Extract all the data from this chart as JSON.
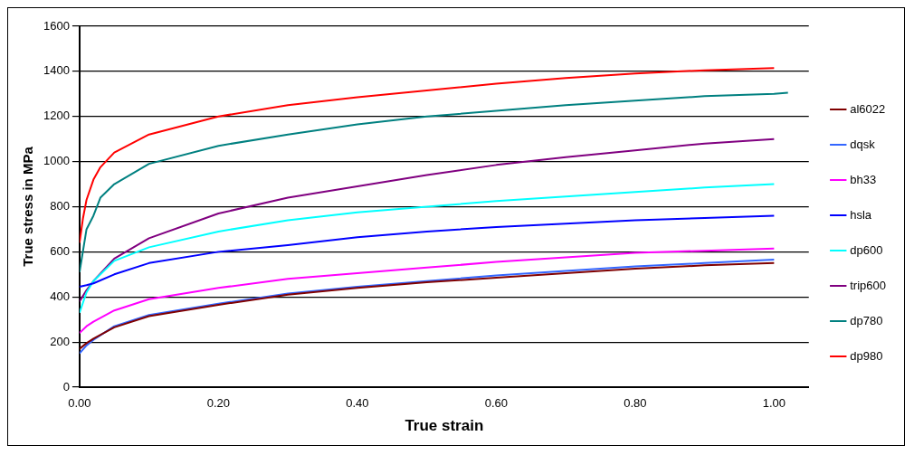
{
  "chart_data": {
    "type": "line",
    "xlabel": "True strain",
    "ylabel": "True stress in MPa",
    "x": [
      0,
      0.01,
      0.02,
      0.05,
      0.1,
      0.2,
      0.3,
      0.4,
      0.5,
      0.6,
      0.7,
      0.8,
      0.9,
      1.0
    ],
    "series": [
      {
        "name": "al6022",
        "color": "#800000",
        "values": [
          170,
          195,
          215,
          265,
          315,
          365,
          410,
          440,
          465,
          485,
          505,
          525,
          540,
          550
        ]
      },
      {
        "name": "dqsk",
        "color": "#3366ff",
        "values": [
          150,
          185,
          210,
          270,
          320,
          370,
          415,
          445,
          470,
          495,
          515,
          535,
          550,
          565
        ]
      },
      {
        "name": "bh33",
        "color": "#ff00ff",
        "values": [
          240,
          270,
          290,
          340,
          390,
          440,
          480,
          505,
          530,
          555,
          575,
          595,
          605,
          615
        ]
      },
      {
        "name": "hsla",
        "color": "#0000ff",
        "values": [
          445,
          452,
          460,
          500,
          550,
          600,
          630,
          665,
          690,
          710,
          725,
          740,
          750,
          760
        ]
      },
      {
        "name": "dp600",
        "color": "#00ffff",
        "values": [
          330,
          420,
          470,
          560,
          620,
          690,
          740,
          775,
          800,
          825,
          845,
          865,
          885,
          900
        ]
      },
      {
        "name": "trip600",
        "color": "#800080",
        "values": [
          380,
          430,
          470,
          570,
          660,
          770,
          840,
          890,
          940,
          985,
          1020,
          1050,
          1080,
          1100
        ]
      },
      {
        "name": "dp780",
        "color": "#008080",
        "x": [
          0,
          0.01,
          0.02,
          0.03,
          0.05,
          0.1,
          0.2,
          0.3,
          0.4,
          0.5,
          0.6,
          0.7,
          0.8,
          0.9,
          1.0,
          1.02
        ],
        "values": [
          510,
          700,
          760,
          840,
          900,
          990,
          1070,
          1120,
          1165,
          1200,
          1225,
          1250,
          1270,
          1290,
          1300,
          1305
        ]
      },
      {
        "name": "dp980",
        "color": "#ff0000",
        "x": [
          0,
          0.005,
          0.01,
          0.02,
          0.03,
          0.05,
          0.1,
          0.2,
          0.3,
          0.4,
          0.5,
          0.6,
          0.7,
          0.8,
          0.9,
          1.0
        ],
        "values": [
          640,
          750,
          830,
          920,
          975,
          1040,
          1120,
          1200,
          1250,
          1285,
          1315,
          1345,
          1370,
          1390,
          1405,
          1415
        ]
      }
    ],
    "xlim": [
      0,
      1.05
    ],
    "xticks": [
      {
        "value": 0,
        "label": "0.00"
      },
      {
        "value": 0.2,
        "label": "0.20"
      },
      {
        "value": 0.4,
        "label": "0.40"
      },
      {
        "value": 0.6,
        "label": "0.60"
      },
      {
        "value": 0.8,
        "label": "0.80"
      },
      {
        "value": 1.0,
        "label": "1.00"
      }
    ],
    "ylim": [
      0,
      1600
    ],
    "yticks": [
      0,
      200,
      400,
      600,
      800,
      1000,
      1200,
      1400,
      1600
    ],
    "grid": "y",
    "legend": "right",
    "marker": "none",
    "line_style": "solid"
  }
}
